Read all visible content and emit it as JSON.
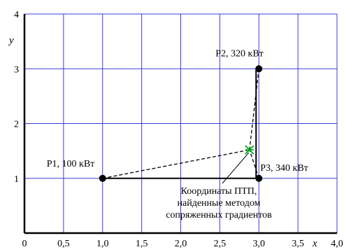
{
  "chart_data": {
    "type": "scatter",
    "xlabel": "x",
    "ylabel": "y",
    "xlim": [
      0,
      4
    ],
    "ylim": [
      0,
      4
    ],
    "x_ticks": [
      {
        "value": 0,
        "label": "0"
      },
      {
        "value": 0.5,
        "label": "0,5"
      },
      {
        "value": 1,
        "label": "1,0"
      },
      {
        "value": 1.5,
        "label": "1,5"
      },
      {
        "value": 2,
        "label": "2,0"
      },
      {
        "value": 2.5,
        "label": "2,5"
      },
      {
        "value": 3,
        "label": "3,0"
      },
      {
        "value": 3.5,
        "label": "3,5"
      },
      {
        "value": 4,
        "label": "4,0"
      }
    ],
    "y_ticks": [
      {
        "value": 1,
        "label": "1"
      },
      {
        "value": 2,
        "label": "2"
      },
      {
        "value": 3,
        "label": "3"
      },
      {
        "value": 4,
        "label": "4"
      }
    ],
    "grid": true,
    "colors": {
      "grid": "#3b3bdc",
      "axis": "#000000",
      "points": "#000000",
      "result_marker": "#00aa22"
    },
    "points": [
      {
        "label": "P1, 100 кВт",
        "x": 1.0,
        "y": 1.0
      },
      {
        "label": "P2, 320 кВт",
        "x": 3.0,
        "y": 3.0
      },
      {
        "label": "P3, 340 кВт",
        "x": 3.0,
        "y": 1.0
      }
    ],
    "result": {
      "x": 2.88,
      "y": 1.52
    },
    "annotation": [
      "Координаты ПТП,",
      "найденные методом",
      "сопряженных градиентов"
    ]
  }
}
